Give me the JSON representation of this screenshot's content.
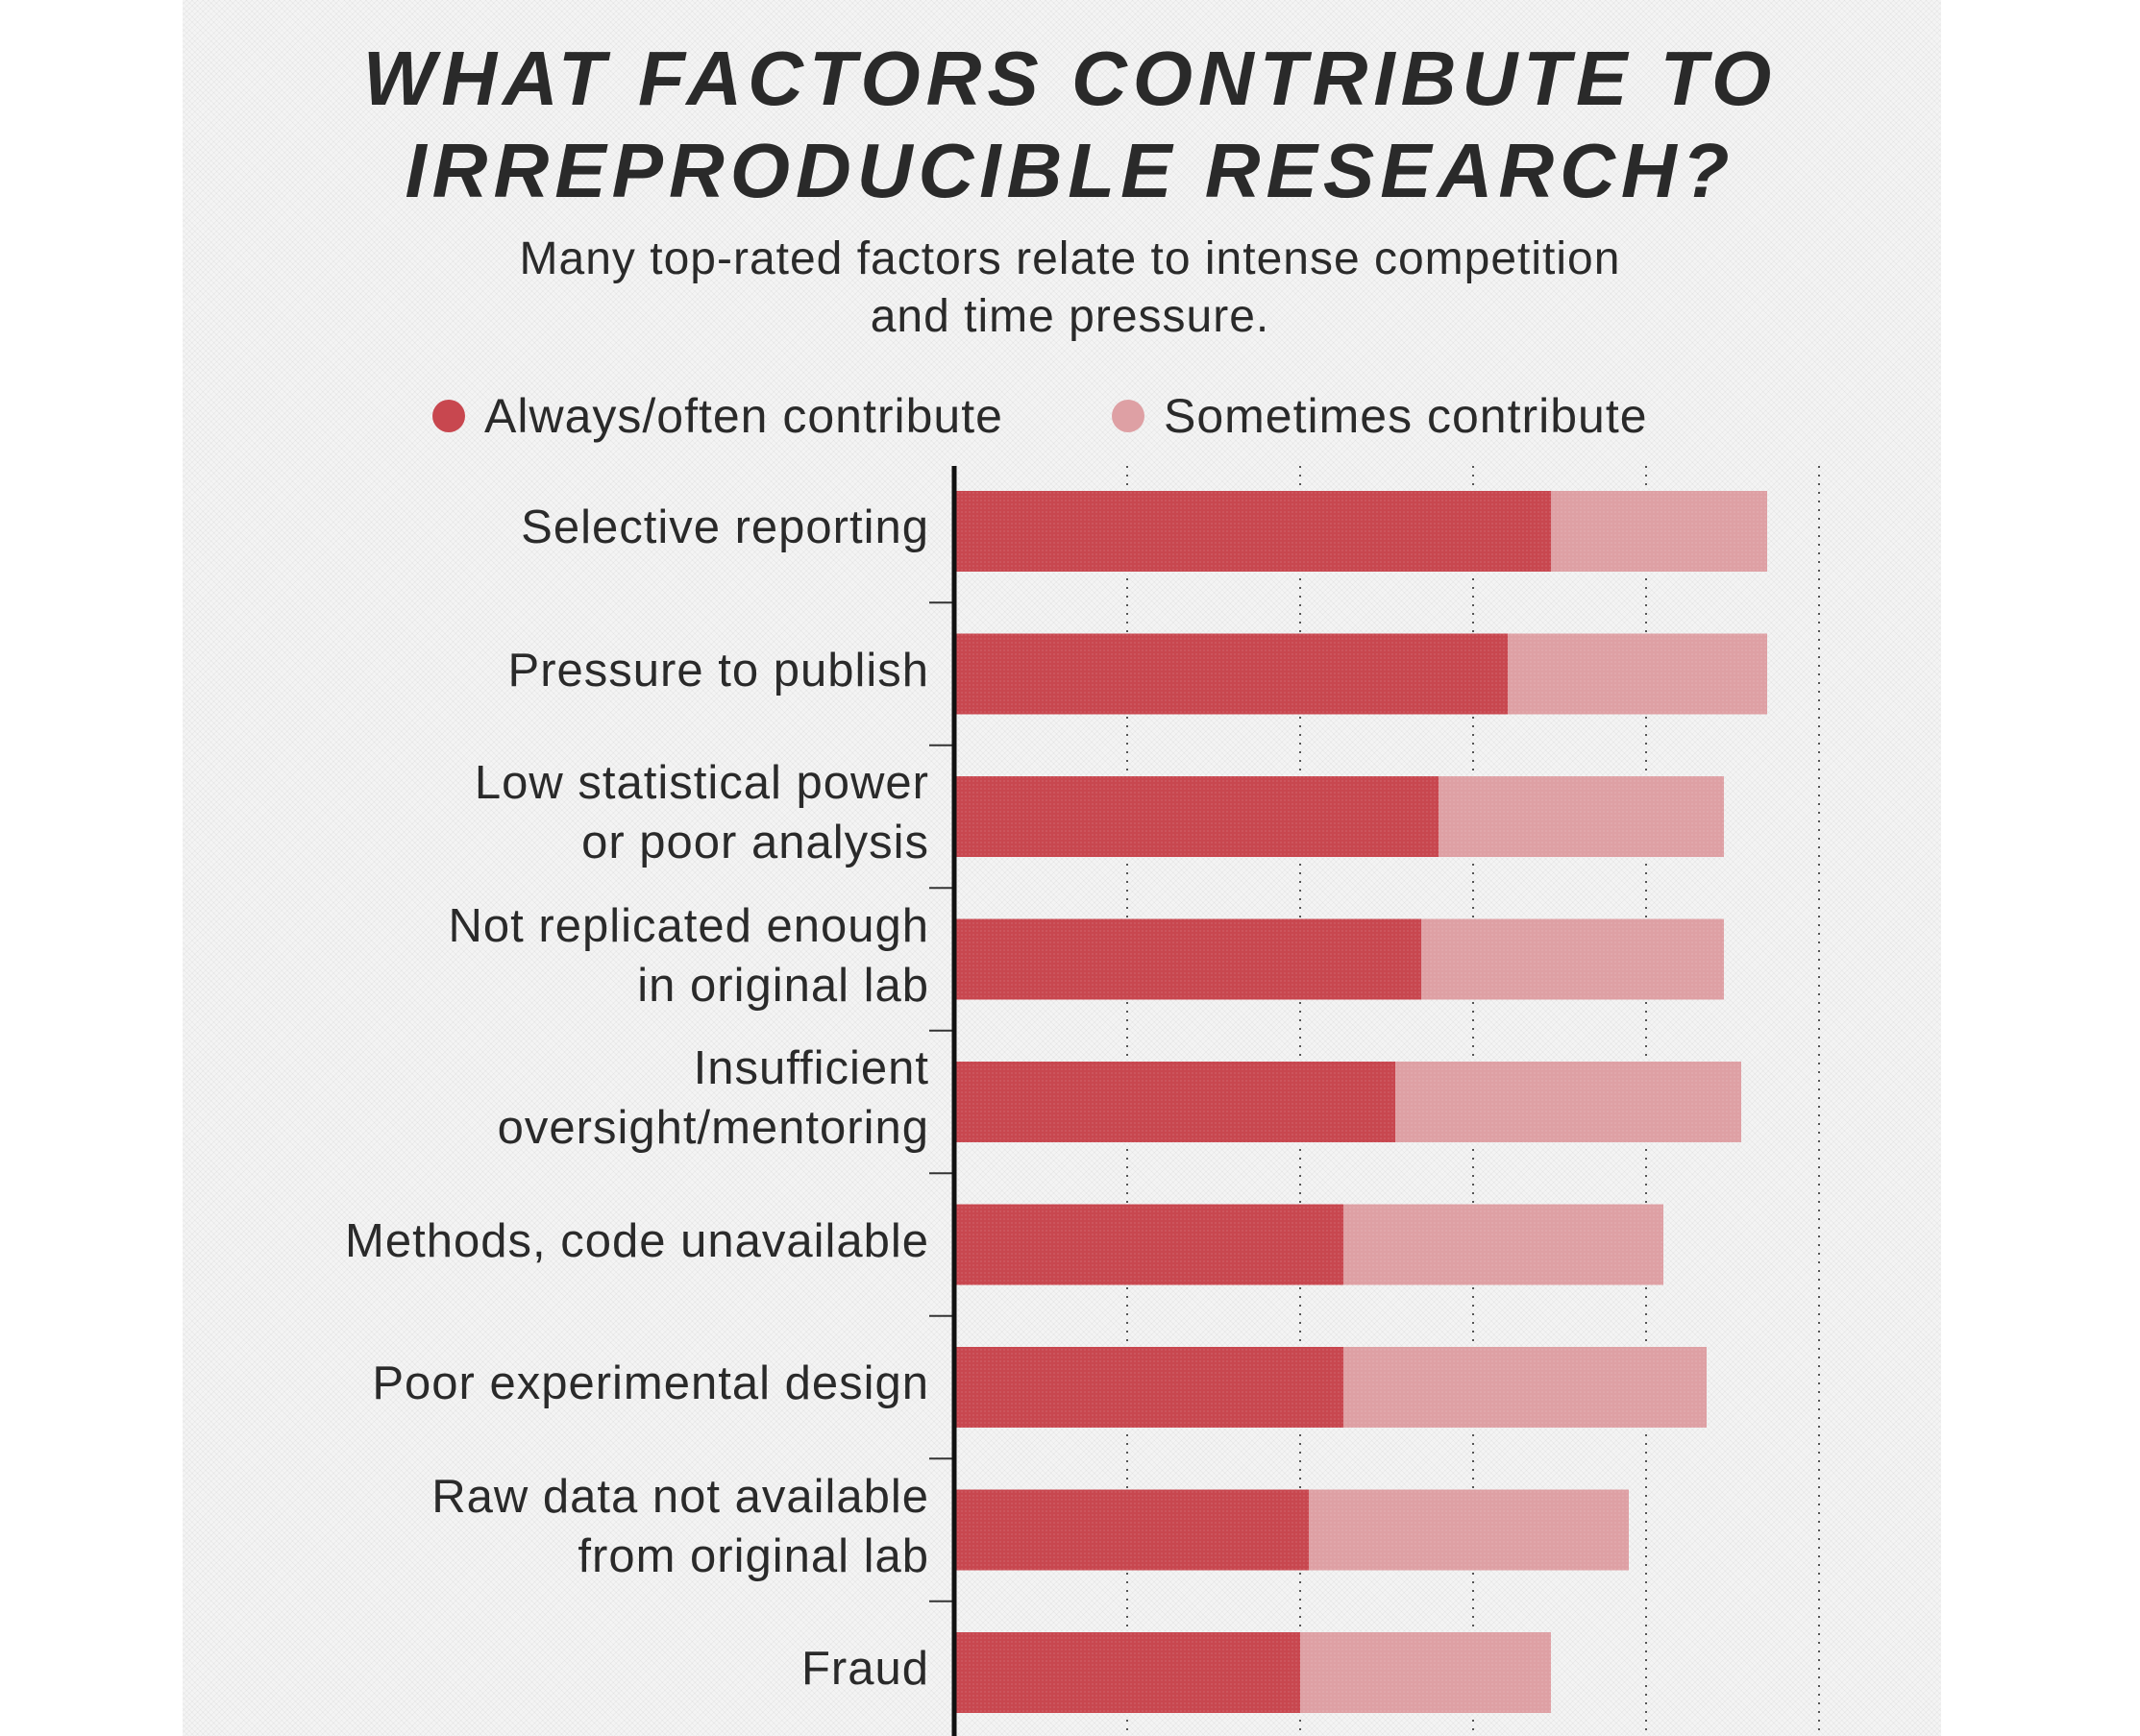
{
  "chart_data": {
    "type": "bar",
    "orientation": "horizontal",
    "stacked": true,
    "title_lines": [
      "WHAT FACTORS CONTRIBUTE TO",
      "IRREPRODUCIBLE RESEARCH?"
    ],
    "subtitle_lines": [
      "Many top-rated factors relate to intense competition",
      "and time pressure."
    ],
    "xlabel": "",
    "ylabel": "",
    "xlim": [
      0,
      100
    ],
    "x_gridlines": [
      20,
      40,
      60,
      80,
      100
    ],
    "grid": true,
    "legend_position": "top",
    "categories": [
      [
        "Selective reporting"
      ],
      [
        "Pressure to publish"
      ],
      [
        "Low statistical power",
        "or poor analysis"
      ],
      [
        "Not replicated enough",
        "in original lab"
      ],
      [
        "Insufficient",
        "oversight/mentoring"
      ],
      [
        "Methods, code unavailable"
      ],
      [
        "Poor experimental design"
      ],
      [
        "Raw data not available",
        "from original lab"
      ],
      [
        "Fraud"
      ]
    ],
    "series": [
      {
        "name": "Always/often contribute",
        "color": "#c8474f",
        "values": [
          69,
          64,
          56,
          54,
          51,
          45,
          45,
          41,
          40
        ]
      },
      {
        "name": "Sometimes contribute",
        "color": "#dea0a4",
        "values": [
          25,
          30,
          33,
          35,
          40,
          37,
          42,
          37,
          29
        ]
      }
    ]
  }
}
